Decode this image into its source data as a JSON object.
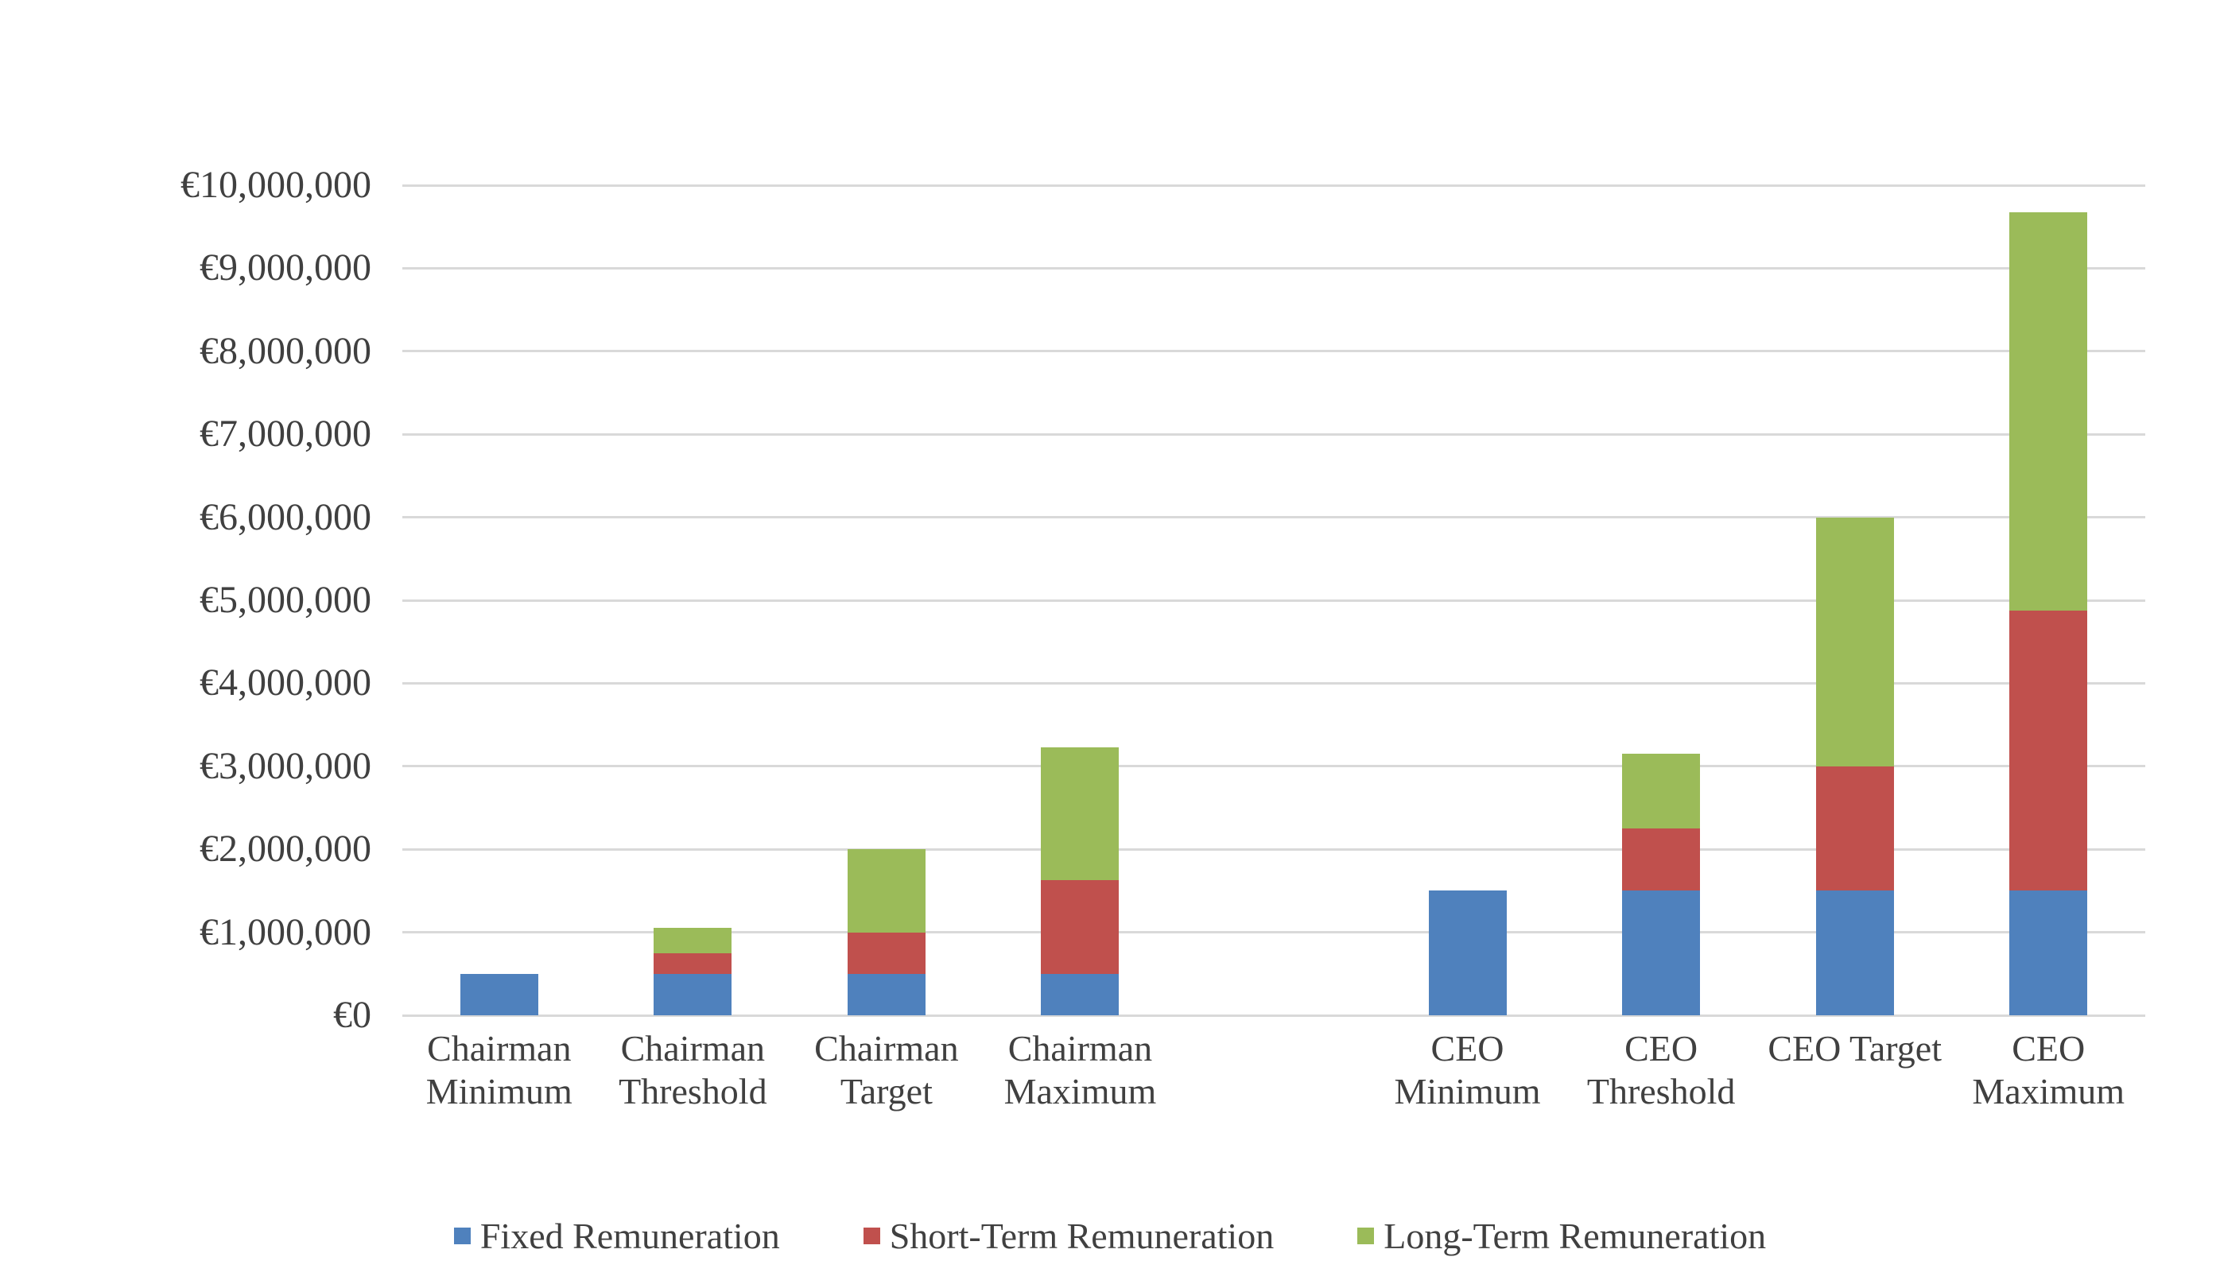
{
  "chart_data": {
    "type": "bar",
    "subtype": "stacked-column",
    "title": "",
    "xlabel": "",
    "ylabel": "",
    "currency": "EUR",
    "categories": [
      "Chairman Minimum",
      "Chairman Threshold",
      "Chairman Target",
      "Chairman Maximum",
      "CEO Minimum",
      "CEO Threshold",
      "CEO Target",
      "CEO Maximum"
    ],
    "series": [
      {
        "name": "Fixed Remuneration",
        "color": "#4F81BD",
        "values": [
          500000,
          500000,
          500000,
          500000,
          1500000,
          1500000,
          1500000,
          1500000
        ]
      },
      {
        "name": "Short-Term Remuneration",
        "color": "#C0504D",
        "values": [
          0,
          250000,
          500000,
          1125000,
          0,
          750000,
          1500000,
          3375000
        ]
      },
      {
        "name": "Long-Term Remuneration",
        "color": "#9BBB59",
        "values": [
          0,
          300000,
          1000000,
          1600000,
          0,
          900000,
          3000000,
          4800000
        ]
      }
    ],
    "stack_totals": [
      500000,
      1050000,
      2000000,
      3225000,
      1500000,
      3150000,
      6000000,
      9675000
    ],
    "ylim": [
      0,
      10000000
    ],
    "y_tick_step": 1000000,
    "y_tick_labels": [
      "€0",
      "€1,000,000",
      "€2,000,000",
      "€3,000,000",
      "€4,000,000",
      "€5,000,000",
      "€6,000,000",
      "€7,000,000",
      "€8,000,000",
      "€9,000,000",
      "€10,000,000"
    ],
    "grid": true,
    "gridline_color": "#D9D9D9",
    "text_color": "#404040",
    "legend_position": "bottom",
    "layout_hints": {
      "total_slots": 9,
      "blank_slot_after_category_index": 3
    }
  }
}
